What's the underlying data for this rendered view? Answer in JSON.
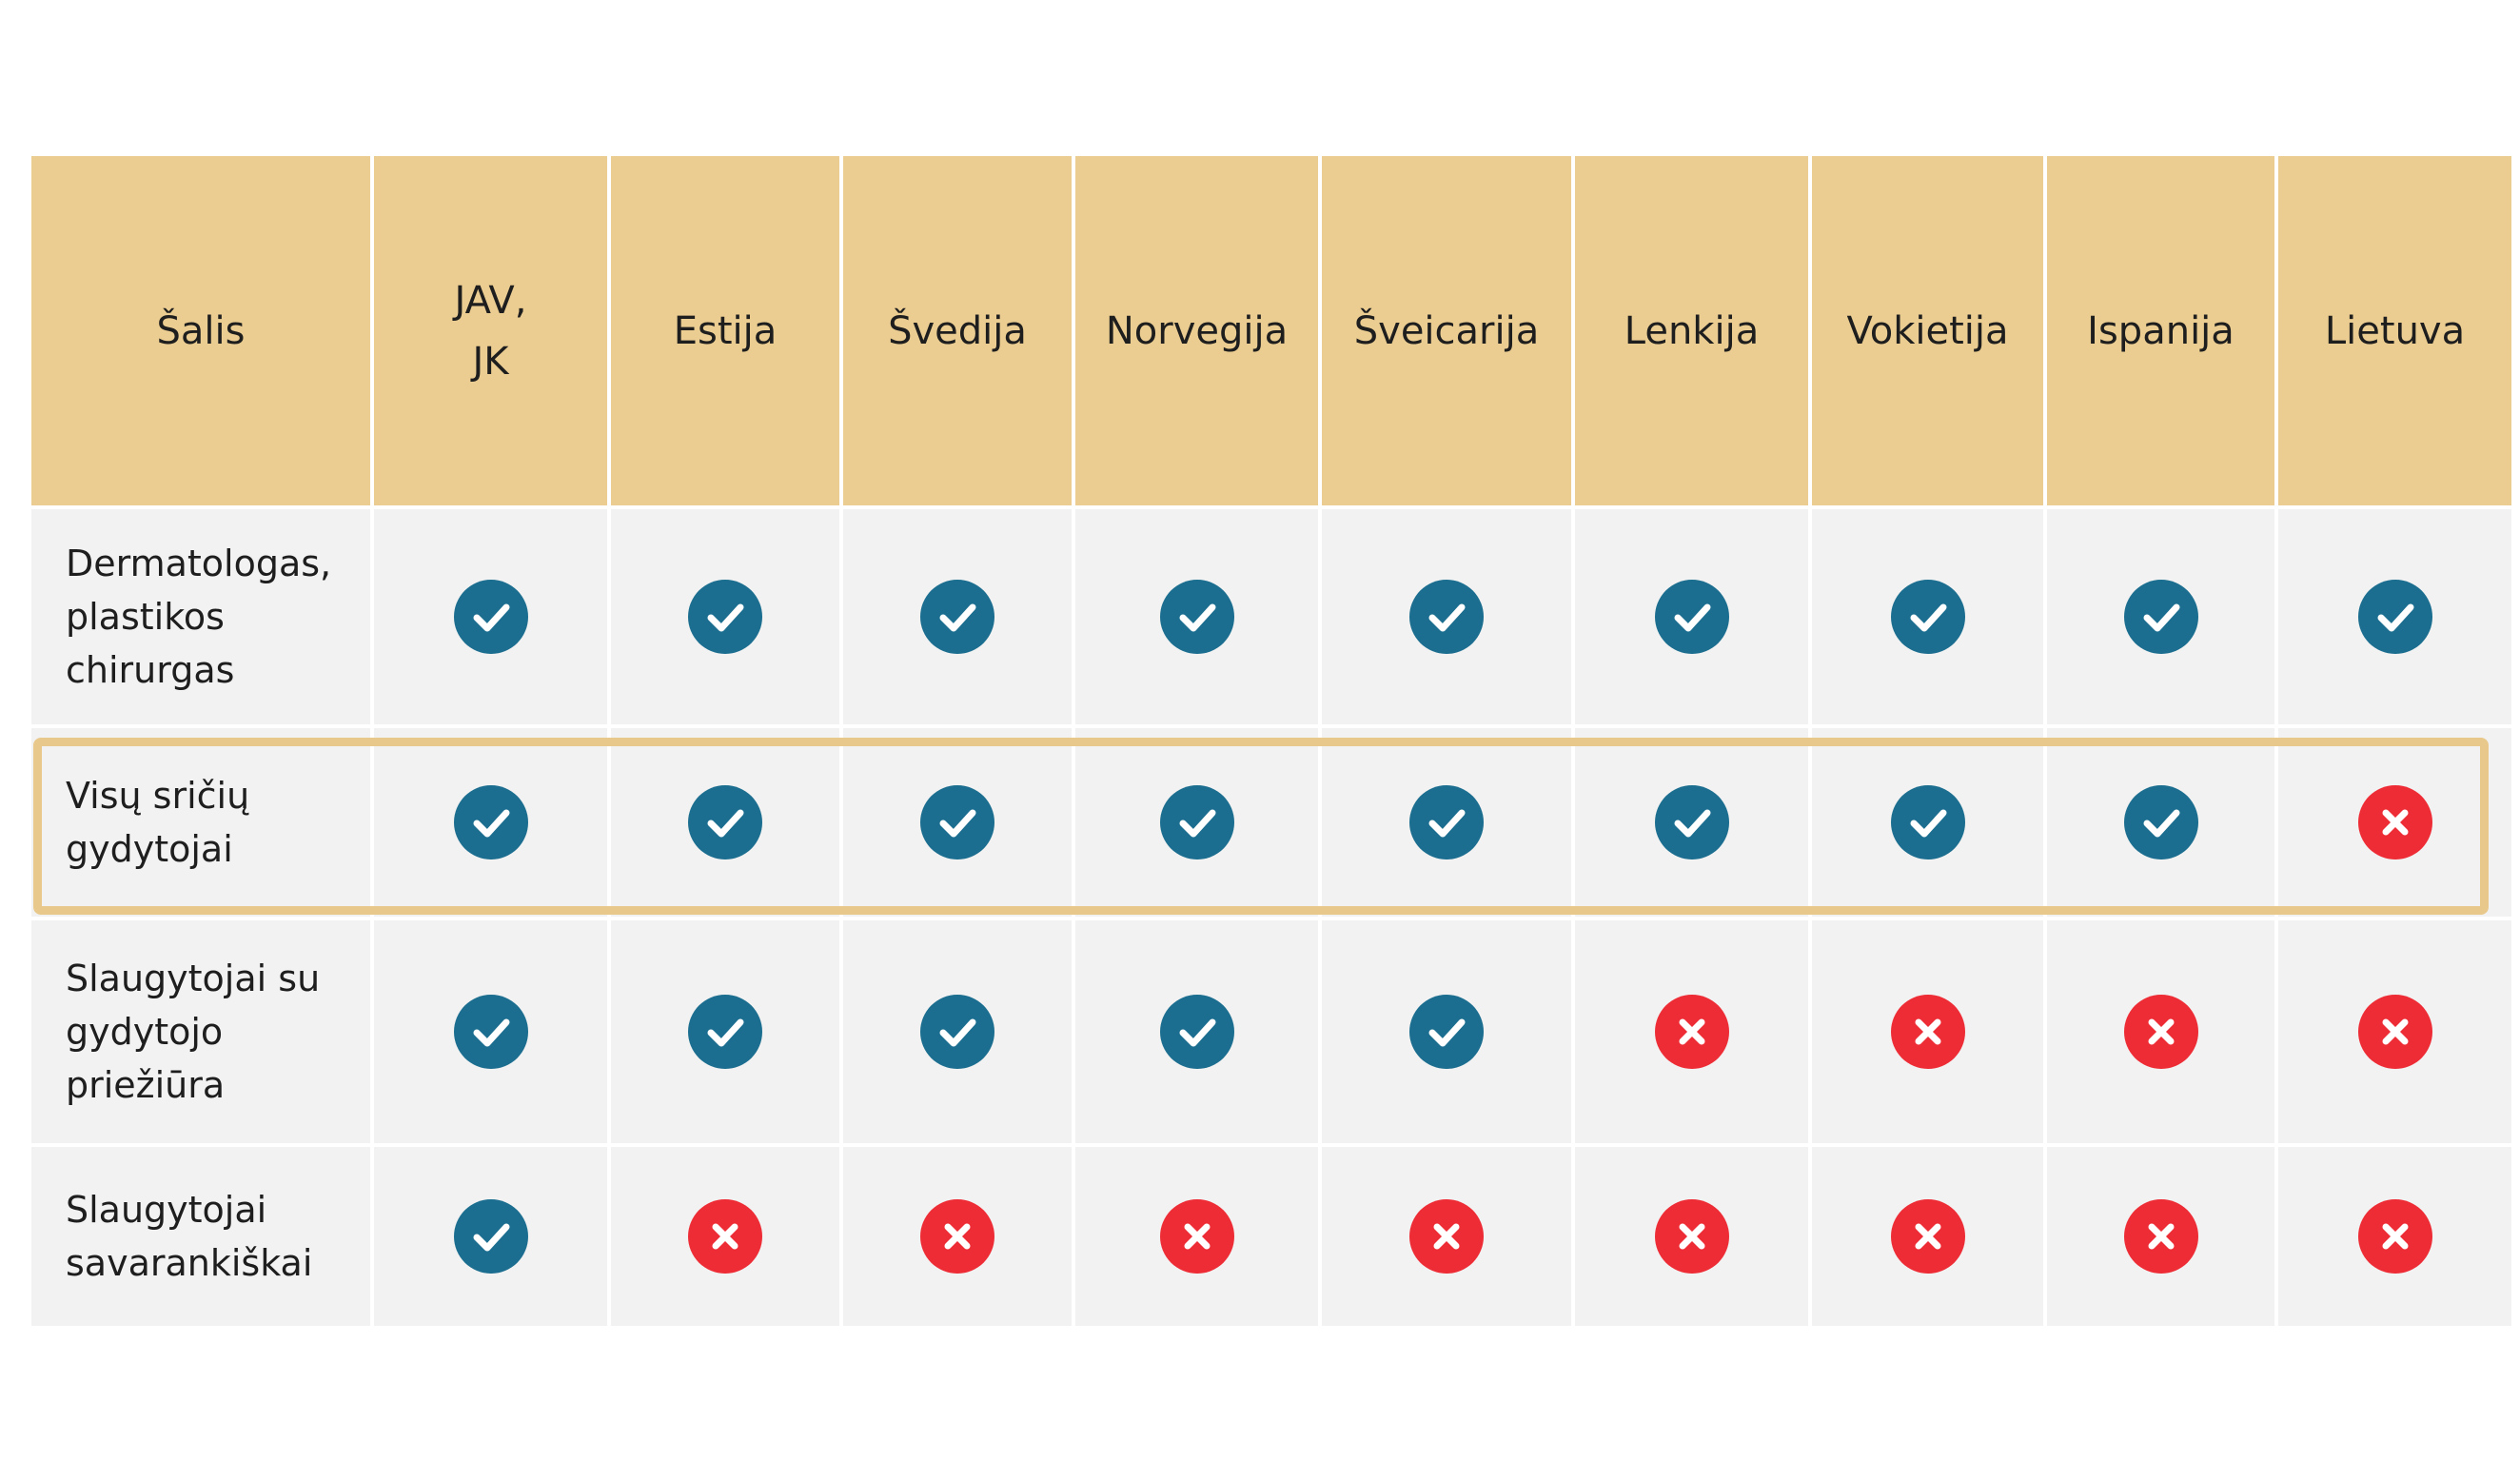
{
  "table": {
    "header": {
      "corner_label": "Šalis",
      "countries": [
        "JAV,\nJK",
        "Estija",
        "Švedija",
        "Norvegija",
        "Šveicarija",
        "Lenkija",
        "Vokietija",
        "Ispanija",
        "Lietuva"
      ]
    },
    "rows": [
      {
        "label": "Dermatologas,\nplastikos\nchirurgas",
        "marks": [
          "check",
          "check",
          "check",
          "check",
          "check",
          "check",
          "check",
          "check",
          "check"
        ]
      },
      {
        "label": "Visų sričių\ngydytojai",
        "highlighted": true,
        "marks": [
          "check",
          "check",
          "check",
          "check",
          "check",
          "check",
          "check",
          "check",
          "cross"
        ]
      },
      {
        "label": "Slaugytojai su\ngydytojo\npriežiūra",
        "marks": [
          "check",
          "check",
          "check",
          "check",
          "check",
          "cross",
          "cross",
          "cross",
          "cross"
        ]
      },
      {
        "label": "Slaugytojai\nsavarankiškai",
        "marks": [
          "check",
          "cross",
          "cross",
          "cross",
          "cross",
          "cross",
          "cross",
          "cross",
          "cross"
        ]
      }
    ]
  },
  "icons": {
    "check": "check-circle-icon",
    "cross": "x-circle-icon"
  },
  "colors": {
    "header_bg": "#ebcd91",
    "body_bg": "#f2f2f2",
    "check": "#1b6e8f",
    "cross": "#ee2c35",
    "highlight_border": "#e8c98b"
  }
}
